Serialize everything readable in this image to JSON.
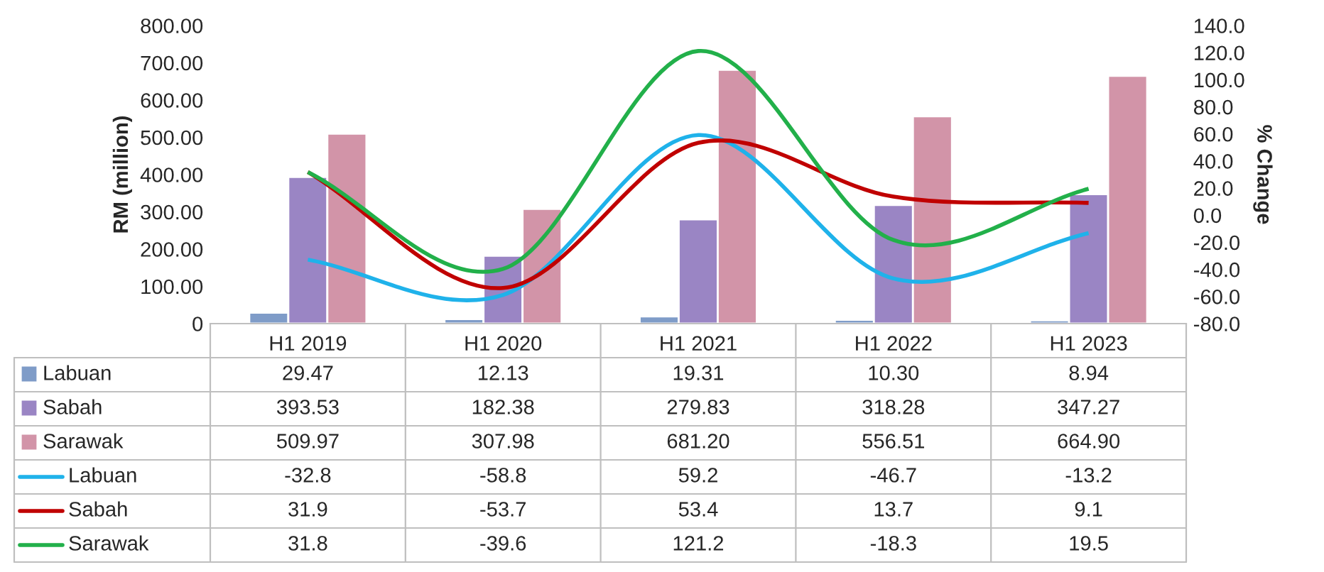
{
  "chart_data": {
    "type": "bar",
    "categories": [
      "H1 2019",
      "H1 2020",
      "H1 2021",
      "H1 2022",
      "H1 2023"
    ],
    "ylabel": "RM (million)",
    "y2label": "% Change",
    "ylim": [
      0,
      800
    ],
    "yticks": [
      {
        "value": 0,
        "label": "0"
      },
      {
        "value": 100,
        "label": "100.00"
      },
      {
        "value": 200,
        "label": "200.00"
      },
      {
        "value": 300,
        "label": "300.00"
      },
      {
        "value": 400,
        "label": "400.00"
      },
      {
        "value": 500,
        "label": "500.00"
      },
      {
        "value": 600,
        "label": "600.00"
      },
      {
        "value": 700,
        "label": "700.00"
      },
      {
        "value": 800,
        "label": "800.00"
      }
    ],
    "y2lim": [
      -80,
      140
    ],
    "y2ticks": [
      {
        "value": -80,
        "label": "-80.0"
      },
      {
        "value": -60,
        "label": "-60.0"
      },
      {
        "value": -40,
        "label": "-40.0"
      },
      {
        "value": -20,
        "label": "-20.0"
      },
      {
        "value": 0,
        "label": "0.0"
      },
      {
        "value": 20,
        "label": "20.0"
      },
      {
        "value": 40,
        "label": "40.0"
      },
      {
        "value": 60,
        "label": "60.0"
      },
      {
        "value": 80,
        "label": "80.0"
      },
      {
        "value": 100,
        "label": "100.0"
      },
      {
        "value": 120,
        "label": "120.0"
      },
      {
        "value": 140,
        "label": "140.0"
      }
    ],
    "legend": "bottom",
    "grid": false,
    "series": [
      {
        "name": "Labuan",
        "color": "#7f9cc8",
        "values": [
          29.47,
          12.13,
          19.31,
          10.3,
          8.94
        ],
        "value_labels": [
          "29.47",
          "12.13",
          "19.31",
          "10.30",
          "8.94"
        ]
      },
      {
        "name": "Sabah",
        "color": "#9a85c4",
        "values": [
          393.53,
          182.38,
          279.83,
          318.28,
          347.27
        ],
        "value_labels": [
          "393.53",
          "182.38",
          "279.83",
          "318.28",
          "347.27"
        ]
      },
      {
        "name": "Sarawak",
        "color": "#d294a8",
        "values": [
          509.97,
          307.98,
          681.2,
          556.51,
          664.9
        ],
        "value_labels": [
          "509.97",
          "307.98",
          "681.20",
          "556.51",
          "664.90"
        ]
      },
      {
        "name": "Labuan",
        "type": "line",
        "axis": "y2",
        "color": "#1fb2ea",
        "values": [
          -32.8,
          -58.8,
          59.2,
          -46.7,
          -13.2
        ],
        "value_labels": [
          "-32.8",
          "-58.8",
          "59.2",
          "-46.7",
          "-13.2"
        ]
      },
      {
        "name": "Sabah",
        "type": "line",
        "axis": "y2",
        "color": "#c00000",
        "values": [
          31.9,
          -53.7,
          53.4,
          13.7,
          9.1
        ],
        "value_labels": [
          "31.9",
          "-53.7",
          "53.4",
          "13.7",
          "9.1"
        ]
      },
      {
        "name": "Sarawak",
        "type": "line",
        "axis": "y2",
        "color": "#22b04a",
        "values": [
          31.8,
          -39.6,
          121.2,
          -18.3,
          19.5
        ],
        "value_labels": [
          "31.8",
          "-39.6",
          "121.2",
          "-18.3",
          "19.5"
        ]
      }
    ]
  }
}
